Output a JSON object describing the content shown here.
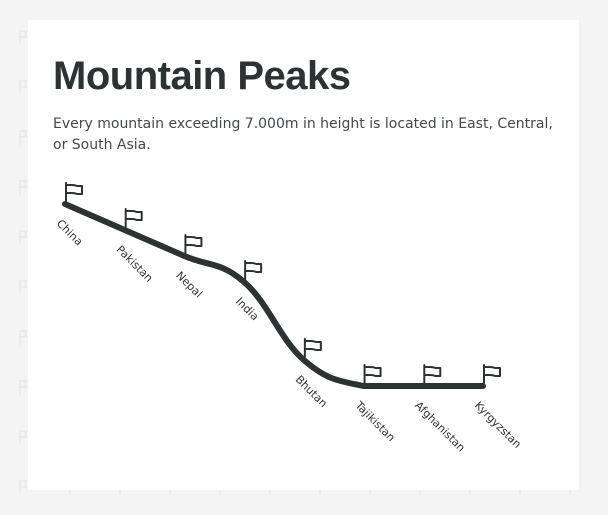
{
  "chart_data": {
    "type": "line",
    "title": "Mountain Peaks",
    "subtitle": "Every mountain exceeding 7.000m in height is located in East, Central, or South Asia.",
    "categories": [
      "China",
      "Pakistan",
      "Nepal",
      "India",
      "Bhutan",
      "Tajikistan",
      "Afghanistan",
      "Kyrgyzstan"
    ],
    "series": [
      {
        "values": [
          8,
          7,
          6,
          5,
          2,
          1,
          1,
          1
        ]
      }
    ],
    "ylim": [
      0,
      9
    ],
    "grid": false,
    "legend": "none",
    "axes_visible": false
  },
  "colors": {
    "line": "#2f3233",
    "text": "#2f3233",
    "background": "#f4f4f4",
    "card": "#ffffff",
    "pattern": "#e9e9e9"
  },
  "icons": {
    "marker": "flag-icon",
    "background": "flag-icon"
  }
}
